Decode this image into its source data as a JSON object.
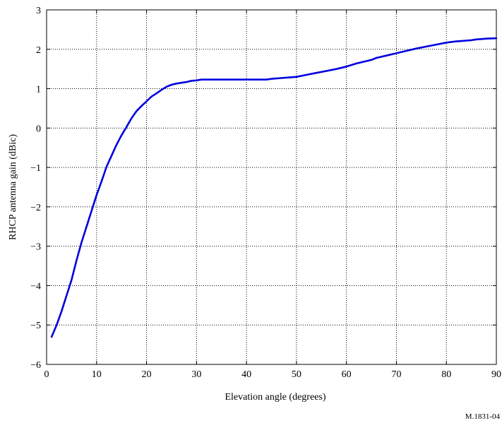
{
  "chart_data": {
    "type": "line",
    "title": "",
    "xlabel": "Elevation angle (degrees)",
    "ylabel": "RHCP antenna gain (dBic)",
    "xlim": [
      0,
      90
    ],
    "ylim": [
      -6,
      3
    ],
    "xticks": [
      "0",
      "10",
      "20",
      "30",
      "40",
      "50",
      "60",
      "70",
      "80",
      "90"
    ],
    "yticks": [
      "3",
      "2",
      "1",
      "0",
      "−1",
      "−2",
      "−3",
      "−4",
      "−5",
      "−6"
    ],
    "grid": true,
    "line_color": "#0000e0",
    "series": [
      {
        "x": [
          1,
          2,
          3,
          4,
          5,
          6,
          7,
          8,
          9,
          10,
          11,
          12,
          13,
          14,
          15,
          16,
          17,
          18,
          19,
          20,
          21,
          22,
          23,
          24,
          25,
          26,
          27,
          28,
          29,
          30,
          31,
          35,
          40,
          44,
          45,
          46,
          47,
          48,
          49,
          50,
          52,
          54,
          56,
          58,
          60,
          62,
          64,
          65,
          66,
          68,
          70,
          72,
          74,
          76,
          78,
          80,
          82,
          83,
          84,
          85,
          86,
          87,
          88,
          90
        ],
        "y": [
          -5.3,
          -5.0,
          -4.65,
          -4.25,
          -3.85,
          -3.35,
          -2.9,
          -2.5,
          -2.1,
          -1.7,
          -1.35,
          -0.98,
          -0.7,
          -0.42,
          -0.18,
          0.03,
          0.25,
          0.43,
          0.56,
          0.68,
          0.8,
          0.88,
          0.97,
          1.05,
          1.1,
          1.13,
          1.15,
          1.17,
          1.2,
          1.21,
          1.23,
          1.23,
          1.23,
          1.23,
          1.25,
          1.26,
          1.27,
          1.28,
          1.29,
          1.3,
          1.35,
          1.4,
          1.45,
          1.5,
          1.56,
          1.64,
          1.7,
          1.73,
          1.78,
          1.84,
          1.9,
          1.96,
          2.02,
          2.07,
          2.12,
          2.17,
          2.2,
          2.21,
          2.22,
          2.23,
          2.25,
          2.26,
          2.27,
          2.28
        ]
      }
    ]
  },
  "figure_code": "M.1831-04"
}
